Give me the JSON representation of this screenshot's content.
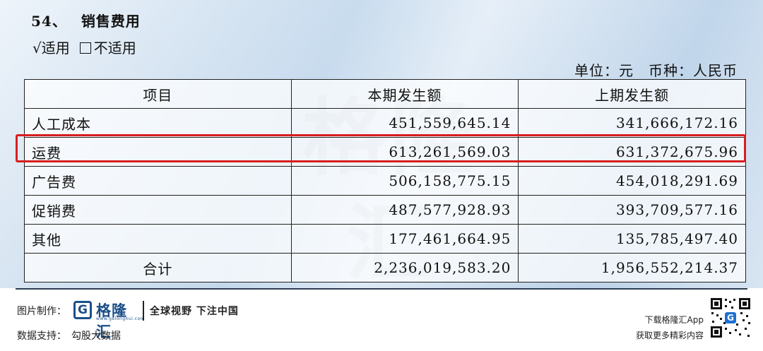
{
  "section": {
    "number": "54、",
    "title": "销售费用"
  },
  "applicable": {
    "check_mark": "√",
    "yes_label": "适用",
    "no_label": "不适用"
  },
  "unit_line": "单位：元　币种：人民币",
  "table": {
    "headers": [
      "项目",
      "本期发生额",
      "上期发生额"
    ],
    "rows": [
      {
        "item": "人工成本",
        "current": "451,559,645.14",
        "previous": "341,666,172.16"
      },
      {
        "item": "运费",
        "current": "613,261,569.03",
        "previous": "631,372,675.96"
      },
      {
        "item": "广告费",
        "current": "506,158,775.15",
        "previous": "454,018,291.69"
      },
      {
        "item": "促销费",
        "current": "487,577,928.93",
        "previous": "393,709,577.16"
      },
      {
        "item": "其他",
        "current": "177,461,664.95",
        "previous": "135,785,497.40"
      }
    ],
    "total": {
      "item": "合计",
      "current": "2,236,019,583.20",
      "previous": "1,956,552,214.37"
    },
    "highlight_color": "#d81e1e"
  },
  "watermark": {
    "brand": "格隆汇",
    "url": "www.gelonghui.com"
  },
  "footer": {
    "made_by_label": "图片制作：",
    "brand_icon_letter": "G",
    "brand_name": "格隆汇",
    "brand_url": "www.gelonghui.com",
    "slogan": "全球视野 下注中国",
    "data_support": "数据支持：　勾股大数据",
    "app_line1": "下载格隆汇App",
    "app_line2": "获取更多精彩内容",
    "brand_color": "#1b4f8a"
  }
}
